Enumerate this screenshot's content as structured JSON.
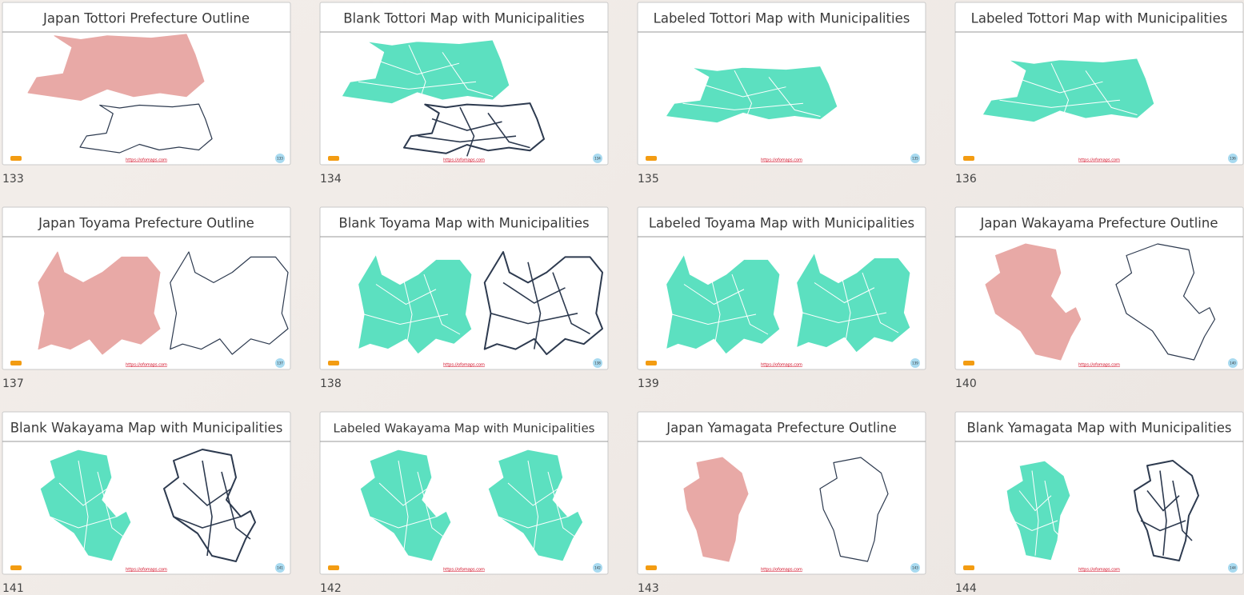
{
  "slides": [
    {
      "number": "133",
      "title": "Japan Tottori Prefecture Outline",
      "url": "https://ofomaps.com"
    },
    {
      "number": "134",
      "title": "Blank Tottori Map with Municipalities",
      "url": "https://ofomaps.com"
    },
    {
      "number": "135",
      "title": "Labeled Tottori Map with Municipalities",
      "url": "https://ofomaps.com"
    },
    {
      "number": "136",
      "title": "Labeled Tottori Map with Municipalities",
      "url": "https://ofomaps.com"
    },
    {
      "number": "137",
      "title": "Japan Toyama Prefecture Outline",
      "url": "https://ofomaps.com"
    },
    {
      "number": "138",
      "title": "Blank Toyama Map with Municipalities",
      "url": "https://ofomaps.com"
    },
    {
      "number": "139",
      "title": "Labeled Toyama Map with Municipalities",
      "url": "https://ofomaps.com"
    },
    {
      "number": "140",
      "title": "Japan Wakayama Prefecture Outline",
      "url": "https://ofomaps.com"
    },
    {
      "number": "141",
      "title": "Blank Wakayama Map with Municipalities",
      "url": "https://ofomaps.com"
    },
    {
      "number": "142",
      "title": "Labeled Wakayama Map with Municipalities",
      "url": "https://ofomaps.com"
    },
    {
      "number": "143",
      "title": "Japan Yamagata Prefecture Outline",
      "url": "https://ofomaps.com"
    },
    {
      "number": "144",
      "title": "Blank Yamagata Map with Municipalities",
      "url": "https://ofomaps.com"
    }
  ]
}
